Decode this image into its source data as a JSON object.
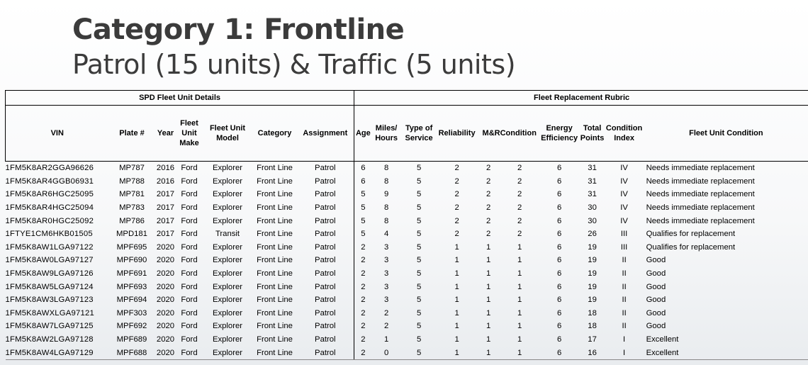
{
  "title": {
    "main": "Category 1: Frontline",
    "sub": "Patrol (15 units) & Traffic (5 units)"
  },
  "table": {
    "group_left": "SPD Fleet Unit Details",
    "group_right": "Fleet Replacement Rubric",
    "headers": [
      "VIN",
      "Plate #",
      "Year",
      "Fleet Unit Make",
      "Fleet Unit Model",
      "Category",
      "Assignment",
      "Age",
      "Miles/ Hours",
      "Type of Service",
      "Reliability",
      "M&R",
      "Condition",
      "Energy Efficiency",
      "Total Points",
      "Condition Index",
      "Fleet Unit Condition"
    ],
    "rows": [
      [
        "1FM5K8AR2GGA96626",
        "MP787",
        "2016",
        "Ford",
        "Explorer",
        "Front Line",
        "Patrol",
        "6",
        "8",
        "5",
        "2",
        "2",
        "2",
        "6",
        "31",
        "IV",
        "Needs immediate replacement"
      ],
      [
        "1FM5K8AR4GGB06931",
        "MP788",
        "2016",
        "Ford",
        "Explorer",
        "Front Line",
        "Patrol",
        "6",
        "8",
        "5",
        "2",
        "2",
        "2",
        "6",
        "31",
        "IV",
        "Needs immediate replacement"
      ],
      [
        "1FM5K8AR6HGC25095",
        "MP781",
        "2017",
        "Ford",
        "Explorer",
        "Front Line",
        "Patrol",
        "5",
        "9",
        "5",
        "2",
        "2",
        "2",
        "6",
        "31",
        "IV",
        "Needs immediate replacement"
      ],
      [
        "1FM5K8AR4HGC25094",
        "MP783",
        "2017",
        "Ford",
        "Explorer",
        "Front Line",
        "Patrol",
        "5",
        "8",
        "5",
        "2",
        "2",
        "2",
        "6",
        "30",
        "IV",
        "Needs immediate replacement"
      ],
      [
        "1FM5K8AR0HGC25092",
        "MP786",
        "2017",
        "Ford",
        "Explorer",
        "Front Line",
        "Patrol",
        "5",
        "8",
        "5",
        "2",
        "2",
        "2",
        "6",
        "30",
        "IV",
        "Needs immediate replacement"
      ],
      [
        "1FTYE1CM6HKB01505",
        "MPD181",
        "2017",
        "Ford",
        "Transit",
        "Front Line",
        "Patrol",
        "5",
        "4",
        "5",
        "2",
        "2",
        "2",
        "6",
        "26",
        "III",
        "Qualifies for replacement"
      ],
      [
        "1FM5K8AW1LGA97122",
        "MPF695",
        "2020",
        "Ford",
        "Explorer",
        "Front Line",
        "Patrol",
        "2",
        "3",
        "5",
        "1",
        "1",
        "1",
        "6",
        "19",
        "III",
        "Qualifies for replacement"
      ],
      [
        "1FM5K8AW0LGA97127",
        "MPF690",
        "2020",
        "Ford",
        "Explorer",
        "Front Line",
        "Patrol",
        "2",
        "3",
        "5",
        "1",
        "1",
        "1",
        "6",
        "19",
        "II",
        "Good"
      ],
      [
        "1FM5K8AW9LGA97126",
        "MPF691",
        "2020",
        "Ford",
        "Explorer",
        "Front Line",
        "Patrol",
        "2",
        "3",
        "5",
        "1",
        "1",
        "1",
        "6",
        "19",
        "II",
        "Good"
      ],
      [
        "1FM5K8AW5LGA97124",
        "MPF693",
        "2020",
        "Ford",
        "Explorer",
        "Front Line",
        "Patrol",
        "2",
        "3",
        "5",
        "1",
        "1",
        "1",
        "6",
        "19",
        "II",
        "Good"
      ],
      [
        "1FM5K8AW3LGA97123",
        "MPF694",
        "2020",
        "Ford",
        "Explorer",
        "Front Line",
        "Patrol",
        "2",
        "3",
        "5",
        "1",
        "1",
        "1",
        "6",
        "19",
        "II",
        "Good"
      ],
      [
        "1FM5K8AWXLGA97121",
        "MPF303",
        "2020",
        "Ford",
        "Explorer",
        "Front Line",
        "Patrol",
        "2",
        "2",
        "5",
        "1",
        "1",
        "1",
        "6",
        "18",
        "II",
        "Good"
      ],
      [
        "1FM5K8AW7LGA97125",
        "MPF692",
        "2020",
        "Ford",
        "Explorer",
        "Front Line",
        "Patrol",
        "2",
        "2",
        "5",
        "1",
        "1",
        "1",
        "6",
        "18",
        "II",
        "Good"
      ],
      [
        "1FM5K8AW2LGA97128",
        "MPF689",
        "2020",
        "Ford",
        "Explorer",
        "Front Line",
        "Patrol",
        "2",
        "1",
        "5",
        "1",
        "1",
        "1",
        "6",
        "17",
        "I",
        "Excellent"
      ],
      [
        "1FM5K8AW4LGA97129",
        "MPF688",
        "2020",
        "Ford",
        "Explorer",
        "Front Line",
        "Patrol",
        "2",
        "0",
        "5",
        "1",
        "1",
        "1",
        "6",
        "16",
        "I",
        "Excellent"
      ]
    ]
  }
}
